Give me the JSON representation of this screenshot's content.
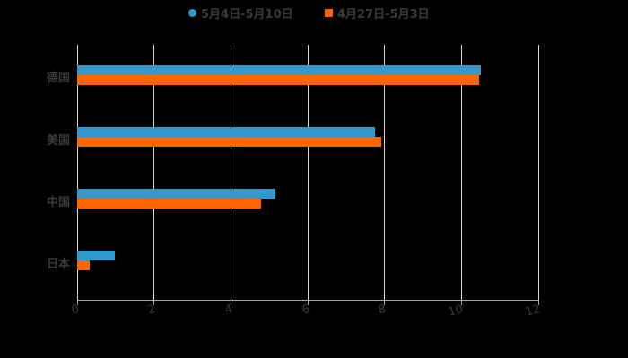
{
  "chart_data": {
    "type": "bar",
    "orientation": "horizontal",
    "title": "",
    "xlabel": "",
    "ylabel": "",
    "categories": [
      "德国",
      "美国",
      "中国",
      "日本"
    ],
    "series": [
      {
        "name": "5月4日-5月10日",
        "color": "#3399cc",
        "marker": "circle",
        "values": [
          10.5,
          7.75,
          5.15,
          0.97
        ]
      },
      {
        "name": "4月27日-5月3日",
        "color": "#ff6600",
        "marker": "square",
        "values": [
          10.45,
          7.92,
          4.78,
          0.32
        ]
      }
    ],
    "xlim": [
      0,
      12
    ],
    "xticks": [
      "0",
      "2",
      "4",
      "6",
      "8",
      "10",
      "12"
    ],
    "grid": true,
    "legend_position": "top"
  },
  "colors": {
    "background": "#000000",
    "grid": "#d9d9d9",
    "text": "#3a3a3a",
    "series_1": "#3399cc",
    "series_2": "#ff6600"
  }
}
